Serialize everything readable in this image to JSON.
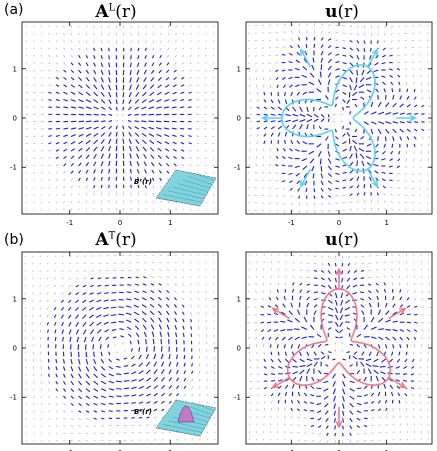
{
  "row_labels": [
    "(a)",
    "(b)"
  ],
  "panels": [
    {
      "title_main": "A",
      "title_sup": "L",
      "title_arg": "(r)"
    },
    {
      "title_main": "u",
      "title_sup": "",
      "title_arg": "(r)"
    },
    {
      "title_main": "A",
      "title_sup": "T",
      "title_arg": "(r)"
    },
    {
      "title_main": "u",
      "title_sup": "",
      "title_arg": "(r)"
    }
  ],
  "insets": [
    "Bᵗ(r)",
    "Bᵗ(r)"
  ],
  "ticks": {
    "x": [
      "-1",
      "0",
      "1"
    ],
    "y": [
      "1",
      "0",
      "-1"
    ]
  },
  "colors": {
    "field": "#1f1fd0",
    "light_field": "#9aa0d8",
    "cyan_arrows": "#5fd0f0",
    "pink_arrows": "#f07a8a",
    "axes": "#000000"
  }
}
